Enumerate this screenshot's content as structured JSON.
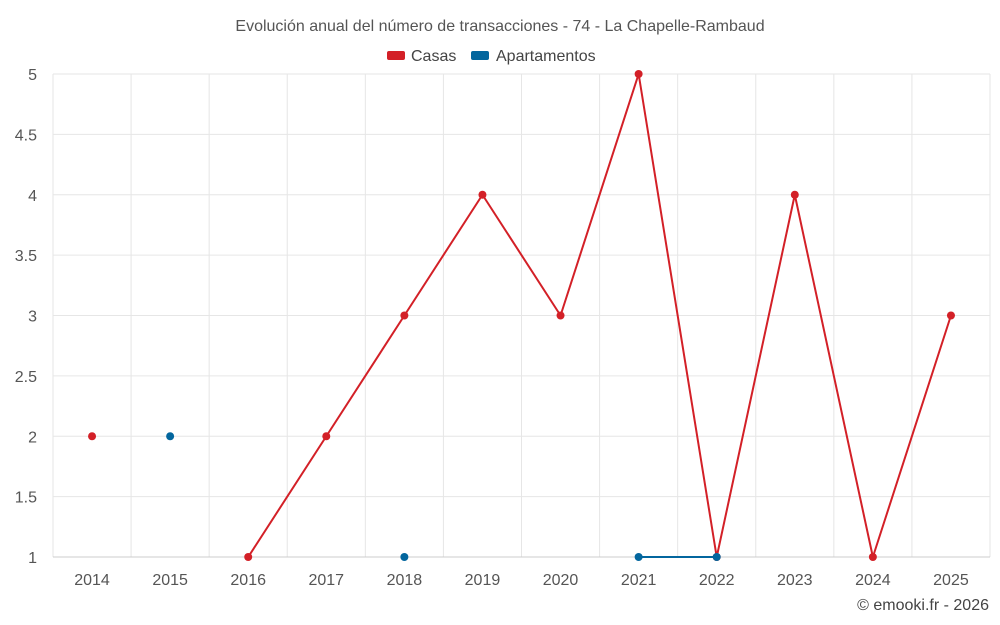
{
  "chart_data": {
    "type": "line",
    "title": "Evolución anual del número de transacciones - 74 - La Chapelle-Rambaud",
    "xlabel": "",
    "ylabel": "",
    "categories": [
      "2014",
      "2015",
      "2016",
      "2017",
      "2018",
      "2019",
      "2020",
      "2021",
      "2022",
      "2023",
      "2024",
      "2025"
    ],
    "ylim": [
      1,
      5
    ],
    "yticks": [
      "1",
      "1.5",
      "2",
      "2.5",
      "3",
      "3.5",
      "4",
      "4.5",
      "5"
    ],
    "grid": true,
    "legend_position": "top-center",
    "series": [
      {
        "name": "Casas",
        "color": "#d32027",
        "values": [
          2,
          null,
          1,
          2,
          3,
          4,
          3,
          5,
          1,
          4,
          1,
          3
        ]
      },
      {
        "name": "Apartamentos",
        "color": "#03669e",
        "values": [
          null,
          2,
          null,
          null,
          1,
          null,
          null,
          1,
          1,
          null,
          null,
          null
        ]
      }
    ]
  },
  "credit": "© emooki.fr - 2026"
}
